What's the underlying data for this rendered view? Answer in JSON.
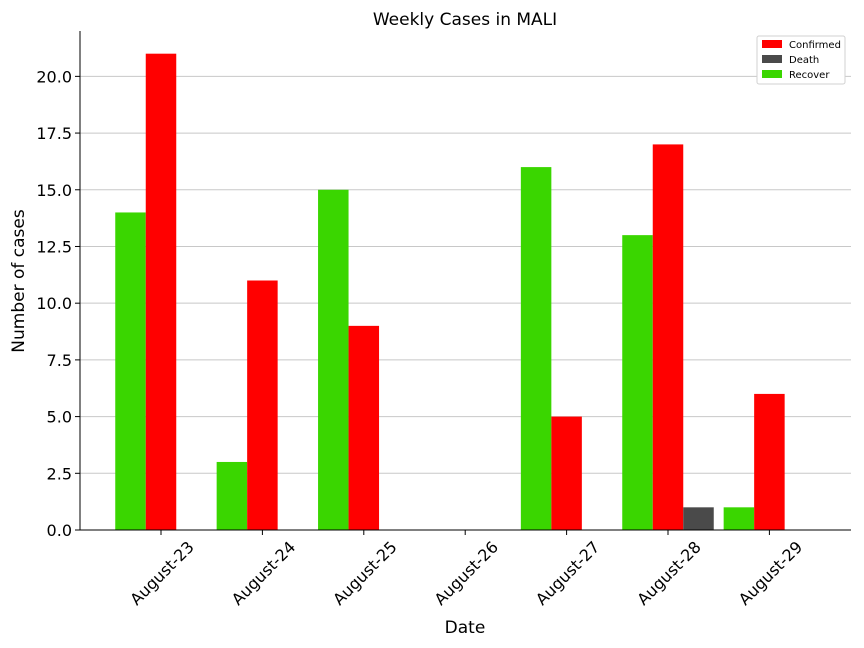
{
  "chart_data": {
    "type": "bar",
    "title": "Weekly Cases in MALI",
    "xlabel": "Date",
    "ylabel": "Number of cases",
    "categories": [
      "August-23",
      "August-24",
      "August-25",
      "August-26",
      "August-27",
      "August-28",
      "August-29"
    ],
    "series": [
      {
        "name": "Recover",
        "color": "#3ad600",
        "values": [
          14,
          3,
          15,
          0,
          16,
          13,
          1
        ]
      },
      {
        "name": "Confirmed",
        "color": "#ff0000",
        "values": [
          21,
          11,
          9,
          0,
          5,
          17,
          6
        ]
      },
      {
        "name": "Death",
        "color": "#4a4a4a",
        "values": [
          0,
          0,
          0,
          0,
          0,
          1,
          0
        ]
      }
    ],
    "legend_order": [
      "Confirmed",
      "Death",
      "Recover"
    ],
    "legend_position": "top-right",
    "ylim": [
      0,
      22
    ],
    "yticks": [
      "0.0",
      "2.5",
      "5.0",
      "7.5",
      "10.0",
      "12.5",
      "15.0",
      "17.5",
      "20.0"
    ],
    "grid": "horizontal"
  }
}
